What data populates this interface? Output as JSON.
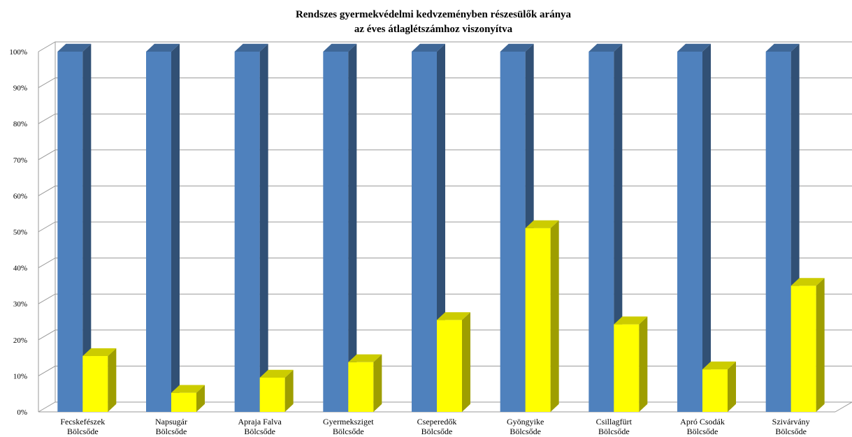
{
  "chart_data": {
    "type": "bar",
    "title_lines": [
      "Rendszes gyermekvédelmi kedvzeményben részesülők aránya",
      "az éves átlaglétszámhoz viszonyítva"
    ],
    "categories": [
      [
        "Fecskefészek",
        "Bölcsőde"
      ],
      [
        "Napsugár",
        "Bölcsőde"
      ],
      [
        "Apraja Falva",
        "Bölcsőde"
      ],
      [
        "Gyermeksziget",
        "Bölcsőde"
      ],
      [
        "Cseperedők",
        "Bölcsőde"
      ],
      [
        "Gyöngyike",
        "Bölcsőde"
      ],
      [
        "Csillagfürt",
        "Bölcsőde"
      ],
      [
        "Apró Csodák",
        "Bölcsőde"
      ],
      [
        "Szivárvány",
        "Bölcsőde"
      ]
    ],
    "series": [
      {
        "values": [
          100,
          100,
          100,
          100,
          100,
          100,
          100,
          100,
          100
        ],
        "color": "#4F81BD"
      },
      {
        "values": [
          15.5,
          5.3,
          9.5,
          13.8,
          25.5,
          51,
          24.3,
          11.8,
          35
        ],
        "color": "#FFFF00"
      }
    ],
    "y_ticks": [
      "0%",
      "10%",
      "20%",
      "30%",
      "40%",
      "50%",
      "60%",
      "70%",
      "80%",
      "90%",
      "100%"
    ],
    "ylim": [
      0,
      100
    ],
    "grid": true,
    "legend": false,
    "style": "3d-column"
  }
}
